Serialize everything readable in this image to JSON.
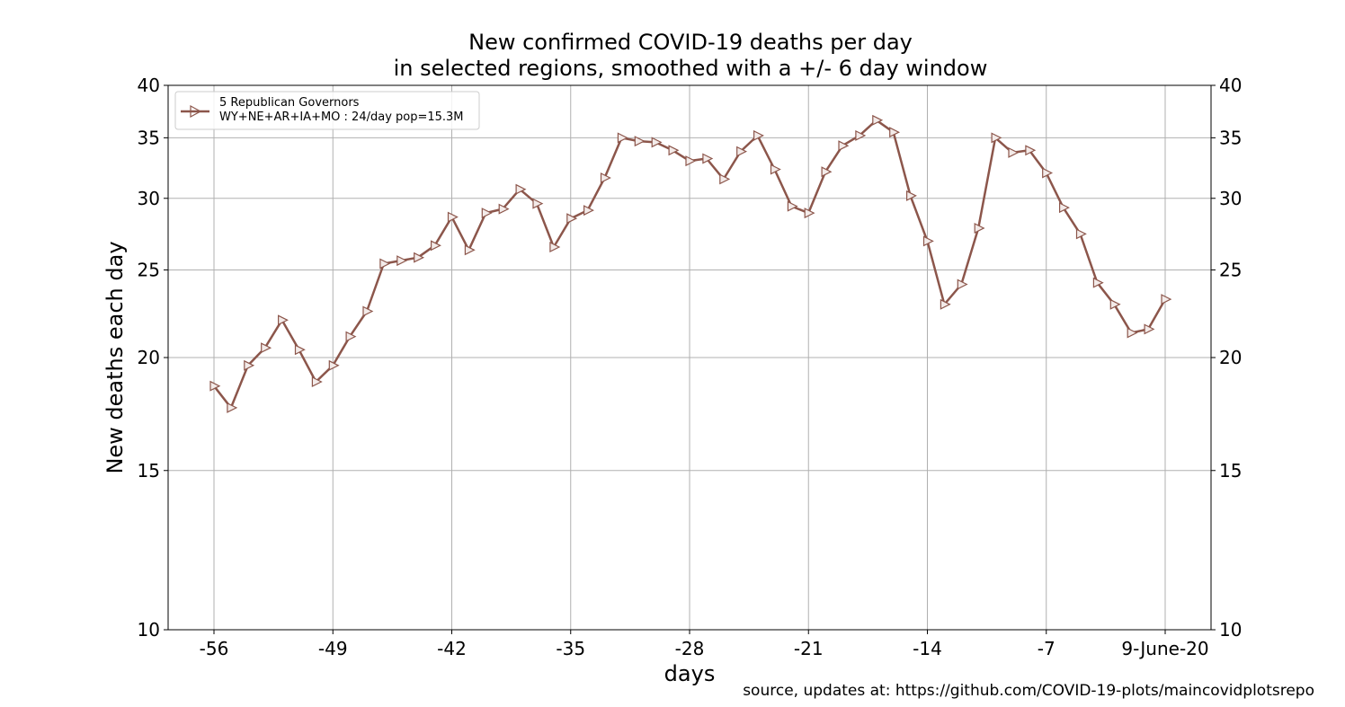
{
  "chart_data": {
    "type": "line",
    "title_lines": [
      "New confirmed COVID-19 deaths per day",
      "in selected regions, smoothed with a +/- 6 day window"
    ],
    "xlabel": "days",
    "ylabel": "New deaths each day",
    "source": "source, updates at: https://github.com/COVID-19-plots/maincovidplotsrepo",
    "yscale": "log",
    "ylim": [
      10,
      40
    ],
    "xlim": [
      -58.7,
      2.7
    ],
    "y_ticks": [
      10,
      15,
      20,
      25,
      30,
      35,
      40
    ],
    "y_tick_labels": [
      "10",
      "15",
      "20",
      "25",
      "30",
      "35",
      "40"
    ],
    "x_ticks": [
      -56,
      -49,
      -42,
      -35,
      -28,
      -21,
      -14,
      -7,
      0
    ],
    "x_tick_labels": [
      "-56",
      "-49",
      "-42",
      "-35",
      "-28",
      "-21",
      "-14",
      "-7",
      "9-June-20"
    ],
    "grid": true,
    "legend": {
      "placement": "top-left",
      "title": "5 Republican Governors",
      "entry": "WY+NE+AR+IA+MO : 24/day pop=15.3M"
    },
    "series": [
      {
        "name": "WY+NE+AR+IA+MO : 24/day pop=15.3M",
        "color": "#8c564b",
        "marker": "triangle-right",
        "x": [
          -56,
          -55,
          -54,
          -53,
          -52,
          -51,
          -50,
          -49,
          -48,
          -47,
          -46,
          -45,
          -44,
          -43,
          -42,
          -41,
          -40,
          -39,
          -38,
          -37,
          -36,
          -35,
          -34,
          -33,
          -32,
          -31,
          -30,
          -29,
          -28,
          -27,
          -26,
          -25,
          -24,
          -23,
          -22,
          -21,
          -20,
          -19,
          -18,
          -17,
          -16,
          -15,
          -14,
          -13,
          -12,
          -11,
          -10,
          -9,
          -8,
          -7,
          -6,
          -5,
          -4,
          -3,
          -2,
          -1,
          0
        ],
        "values": [
          18.6,
          17.6,
          19.6,
          20.5,
          22.0,
          20.4,
          18.8,
          19.6,
          21.1,
          22.5,
          25.4,
          25.6,
          25.8,
          26.6,
          28.6,
          26.3,
          28.9,
          29.2,
          30.7,
          29.6,
          26.5,
          28.5,
          29.1,
          31.6,
          35.0,
          34.7,
          34.6,
          33.9,
          33.0,
          33.2,
          31.5,
          33.8,
          35.2,
          32.3,
          29.4,
          28.9,
          32.1,
          34.3,
          35.2,
          36.6,
          35.5,
          30.2,
          26.9,
          22.9,
          24.1,
          27.8,
          35.0,
          33.7,
          33.9,
          32.0,
          29.3,
          27.4,
          24.2,
          22.9,
          21.3,
          21.5,
          23.2
        ]
      }
    ]
  }
}
